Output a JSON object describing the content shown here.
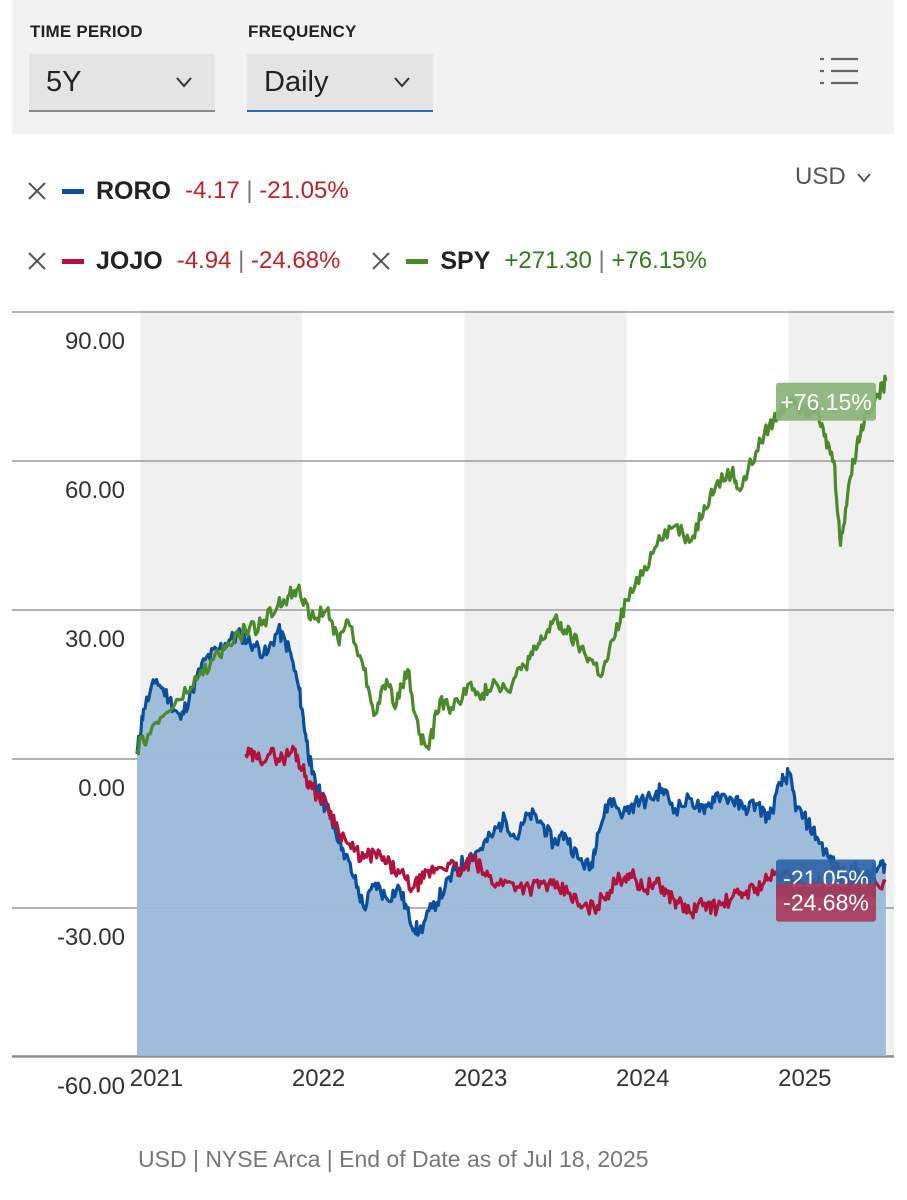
{
  "controls": {
    "time_period": {
      "label": "TIME PERIOD",
      "value": "5Y"
    },
    "frequency": {
      "label": "FREQUENCY",
      "value": "Daily"
    },
    "list_icon": "list-view-icon"
  },
  "currency": {
    "value": "USD"
  },
  "legend": [
    {
      "symbol": "RORO",
      "change": "-4.17",
      "sep": "|",
      "pct": "-21.05%",
      "color": "#0a4f9c",
      "trend": "neg"
    },
    {
      "symbol": "JOJO",
      "change": "-4.94",
      "sep": "|",
      "pct": "-24.68%",
      "color": "#b0123c",
      "trend": "neg"
    },
    {
      "symbol": "SPY",
      "change": "+271.30",
      "sep": "|",
      "pct": "+76.15%",
      "color": "#4a8a2a",
      "trend": "pos"
    }
  ],
  "chart_data": {
    "type": "line",
    "y_ticks": [
      "90.00",
      "60.00",
      "30.00",
      "0.00",
      "-30.00",
      "-60.00"
    ],
    "y_tick_values": [
      90,
      60,
      30,
      0,
      -30,
      -60
    ],
    "x_ticks": [
      "2021",
      "2022",
      "2023",
      "2024",
      "2025"
    ],
    "x_tick_values": [
      2021.0,
      2022.0,
      2023.0,
      2024.0,
      2025.0
    ],
    "xlim": [
      2020.88,
      2025.55
    ],
    "ylim": [
      -60,
      90
    ],
    "grid": "horizontal",
    "shaded_year_bands": true,
    "series": [
      {
        "name": "SPY",
        "color": "#4a8a2a",
        "end_label": "+76.15%",
        "end_label_bg": "#8ab37a",
        "points": [
          [
            2020.88,
            2
          ],
          [
            2020.95,
            5
          ],
          [
            2021.05,
            9
          ],
          [
            2021.15,
            12
          ],
          [
            2021.25,
            16
          ],
          [
            2021.35,
            20
          ],
          [
            2021.45,
            23
          ],
          [
            2021.55,
            26
          ],
          [
            2021.65,
            27
          ],
          [
            2021.75,
            31
          ],
          [
            2021.82,
            33
          ],
          [
            2021.88,
            35
          ],
          [
            2021.95,
            28
          ],
          [
            2022.05,
            30
          ],
          [
            2022.12,
            24
          ],
          [
            2022.18,
            28
          ],
          [
            2022.28,
            18
          ],
          [
            2022.35,
            9
          ],
          [
            2022.42,
            16
          ],
          [
            2022.48,
            11
          ],
          [
            2022.55,
            18
          ],
          [
            2022.62,
            5
          ],
          [
            2022.68,
            2
          ],
          [
            2022.75,
            12
          ],
          [
            2022.83,
            10
          ],
          [
            2022.92,
            15
          ],
          [
            2023.0,
            12
          ],
          [
            2023.08,
            16
          ],
          [
            2023.16,
            14
          ],
          [
            2023.25,
            18
          ],
          [
            2023.32,
            21
          ],
          [
            2023.38,
            24
          ],
          [
            2023.45,
            28
          ],
          [
            2023.52,
            26
          ],
          [
            2023.6,
            23
          ],
          [
            2023.68,
            20
          ],
          [
            2023.75,
            17
          ],
          [
            2023.82,
            24
          ],
          [
            2023.9,
            32
          ],
          [
            2024.0,
            37
          ],
          [
            2024.1,
            45
          ],
          [
            2024.2,
            47
          ],
          [
            2024.3,
            44
          ],
          [
            2024.38,
            51
          ],
          [
            2024.45,
            55
          ],
          [
            2024.55,
            58
          ],
          [
            2024.6,
            54
          ],
          [
            2024.7,
            62
          ],
          [
            2024.78,
            67
          ],
          [
            2024.85,
            70
          ],
          [
            2024.92,
            73
          ],
          [
            2025.0,
            70
          ],
          [
            2025.06,
            71
          ],
          [
            2025.12,
            65
          ],
          [
            2025.18,
            60
          ],
          [
            2025.22,
            43
          ],
          [
            2025.27,
            55
          ],
          [
            2025.32,
            63
          ],
          [
            2025.38,
            70
          ],
          [
            2025.45,
            73
          ],
          [
            2025.5,
            76.15
          ]
        ]
      },
      {
        "name": "RORO",
        "color": "#0a4f9c",
        "fill": "#9ab9d9",
        "end_label": "-21.05%",
        "end_label_bg": "#2e64a8",
        "points": [
          [
            2020.88,
            1
          ],
          [
            2020.92,
            10
          ],
          [
            2021.0,
            16
          ],
          [
            2021.08,
            12
          ],
          [
            2021.15,
            8
          ],
          [
            2021.22,
            14
          ],
          [
            2021.3,
            20
          ],
          [
            2021.38,
            22
          ],
          [
            2021.45,
            24
          ],
          [
            2021.52,
            25
          ],
          [
            2021.6,
            23
          ],
          [
            2021.68,
            21
          ],
          [
            2021.75,
            26
          ],
          [
            2021.82,
            22
          ],
          [
            2021.88,
            14
          ],
          [
            2021.92,
            5
          ],
          [
            2021.96,
            -3
          ],
          [
            2022.02,
            -8
          ],
          [
            2022.08,
            -12
          ],
          [
            2022.15,
            -18
          ],
          [
            2022.22,
            -24
          ],
          [
            2022.28,
            -30
          ],
          [
            2022.35,
            -25
          ],
          [
            2022.42,
            -28
          ],
          [
            2022.5,
            -26
          ],
          [
            2022.56,
            -32
          ],
          [
            2022.62,
            -35
          ],
          [
            2022.7,
            -30
          ],
          [
            2022.78,
            -26
          ],
          [
            2022.85,
            -22
          ],
          [
            2022.92,
            -20
          ],
          [
            2023.0,
            -18
          ],
          [
            2023.08,
            -15
          ],
          [
            2023.15,
            -12
          ],
          [
            2023.22,
            -16
          ],
          [
            2023.3,
            -11
          ],
          [
            2023.38,
            -13
          ],
          [
            2023.45,
            -17
          ],
          [
            2023.52,
            -15
          ],
          [
            2023.6,
            -20
          ],
          [
            2023.68,
            -22
          ],
          [
            2023.72,
            -15
          ],
          [
            2023.8,
            -8
          ],
          [
            2023.88,
            -11
          ],
          [
            2023.95,
            -9
          ],
          [
            2024.05,
            -8
          ],
          [
            2024.12,
            -6
          ],
          [
            2024.2,
            -10
          ],
          [
            2024.3,
            -8
          ],
          [
            2024.38,
            -11
          ],
          [
            2024.45,
            -7
          ],
          [
            2024.55,
            -8
          ],
          [
            2024.62,
            -10
          ],
          [
            2024.7,
            -9
          ],
          [
            2024.78,
            -12
          ],
          [
            2024.85,
            -5
          ],
          [
            2024.9,
            -3
          ],
          [
            2024.95,
            -10
          ],
          [
            2025.02,
            -13
          ],
          [
            2025.08,
            -16
          ],
          [
            2025.15,
            -20
          ],
          [
            2025.22,
            -23
          ],
          [
            2025.3,
            -22
          ],
          [
            2025.38,
            -24
          ],
          [
            2025.45,
            -22
          ],
          [
            2025.5,
            -21.05
          ]
        ]
      },
      {
        "name": "JOJO",
        "color": "#b0123c",
        "end_label": "-24.68%",
        "end_label_bg": "#a8395a",
        "points": [
          [
            2021.55,
            1
          ],
          [
            2021.62,
            0
          ],
          [
            2021.7,
            1
          ],
          [
            2021.78,
            0
          ],
          [
            2021.85,
            2
          ],
          [
            2021.9,
            -2
          ],
          [
            2021.96,
            -6
          ],
          [
            2022.05,
            -9
          ],
          [
            2022.12,
            -14
          ],
          [
            2022.2,
            -18
          ],
          [
            2022.28,
            -20
          ],
          [
            2022.35,
            -19
          ],
          [
            2022.42,
            -21
          ],
          [
            2022.5,
            -23
          ],
          [
            2022.58,
            -26
          ],
          [
            2022.65,
            -24
          ],
          [
            2022.72,
            -22
          ],
          [
            2022.8,
            -21
          ],
          [
            2022.88,
            -23
          ],
          [
            2022.95,
            -20
          ],
          [
            2023.02,
            -23
          ],
          [
            2023.1,
            -25
          ],
          [
            2023.2,
            -25
          ],
          [
            2023.3,
            -26
          ],
          [
            2023.38,
            -25
          ],
          [
            2023.46,
            -26
          ],
          [
            2023.55,
            -27
          ],
          [
            2023.62,
            -30
          ],
          [
            2023.7,
            -30
          ],
          [
            2023.78,
            -27
          ],
          [
            2023.86,
            -24
          ],
          [
            2023.92,
            -23
          ],
          [
            2024.0,
            -26
          ],
          [
            2024.08,
            -25
          ],
          [
            2024.15,
            -27
          ],
          [
            2024.22,
            -29
          ],
          [
            2024.3,
            -31
          ],
          [
            2024.38,
            -29
          ],
          [
            2024.46,
            -30
          ],
          [
            2024.55,
            -28
          ],
          [
            2024.62,
            -27
          ],
          [
            2024.7,
            -26
          ],
          [
            2024.78,
            -24
          ],
          [
            2024.86,
            -23
          ],
          [
            2024.94,
            -25
          ],
          [
            2025.02,
            -26
          ],
          [
            2025.1,
            -25
          ],
          [
            2025.2,
            -26
          ],
          [
            2025.3,
            -25
          ],
          [
            2025.4,
            -25
          ],
          [
            2025.5,
            -24.68
          ]
        ]
      }
    ]
  },
  "footnote": "USD | NYSE Arca | End of Date as of Jul 18, 2025"
}
